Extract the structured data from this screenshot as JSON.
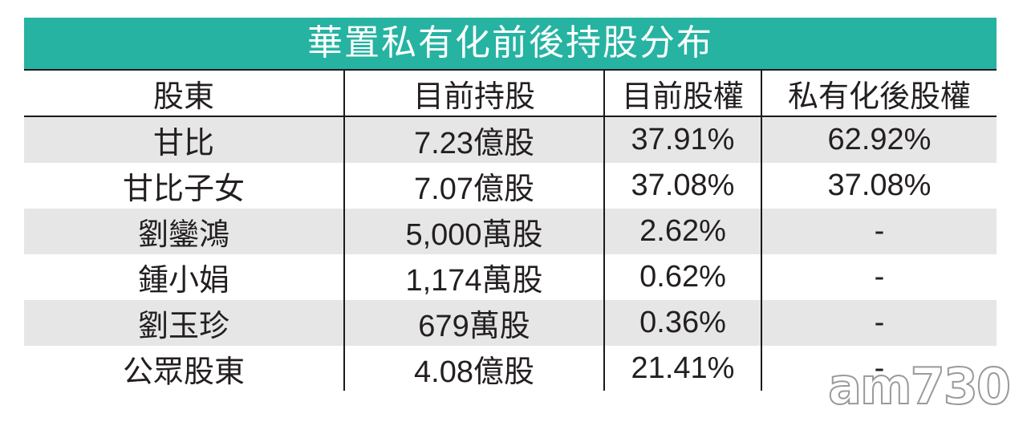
{
  "colors": {
    "title_bg": "#26b3a2",
    "row_shade": "#e6e6e7",
    "rule": "#1a1a1a"
  },
  "table": {
    "title": "華置私有化前後持股分布",
    "headers": [
      "股東",
      "目前持股",
      "目前股權",
      "私有化後股權"
    ],
    "rows": [
      [
        "甘比",
        "7.23億股",
        "37.91%",
        "62.92%"
      ],
      [
        "甘比子女",
        "7.07億股",
        "37.08%",
        "37.08%"
      ],
      [
        "劉鑾鴻",
        "5,000萬股",
        "2.62%",
        "-"
      ],
      [
        "鍾小娟",
        "1,174萬股",
        "0.62%",
        "-"
      ],
      [
        "劉玉珍",
        "679萬股",
        "0.36%",
        "-"
      ],
      [
        "公眾股東",
        "4.08億股",
        "21.41%",
        "-"
      ]
    ]
  },
  "watermark": "am730"
}
